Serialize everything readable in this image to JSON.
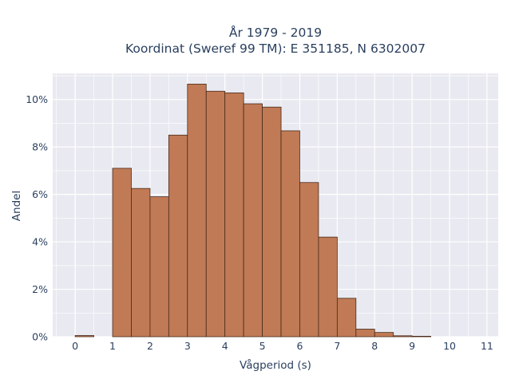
{
  "chart_data": {
    "type": "bar",
    "title_line1": "År 1979 - 2019",
    "title_line2": "Koordinat (Sweref 99 TM): E 351185, N 6302007",
    "xlabel": "Vågperiod (s)",
    "ylabel": "Andel",
    "xlim": [
      -0.6,
      11.3
    ],
    "ylim": [
      0,
      11.1
    ],
    "x_ticks": [
      0,
      1,
      2,
      3,
      4,
      5,
      6,
      7,
      8,
      9,
      10,
      11
    ],
    "x_tick_labels": [
      "0",
      "1",
      "2",
      "3",
      "4",
      "5",
      "6",
      "7",
      "8",
      "9",
      "10",
      "11"
    ],
    "y_ticks": [
      0,
      2,
      4,
      6,
      8,
      10
    ],
    "y_tick_labels": [
      "0%",
      "2%",
      "4%",
      "6%",
      "8%",
      "10%"
    ],
    "bin_width": 0.5,
    "bin_starts": [
      0,
      1,
      1.5,
      2,
      2.5,
      3,
      3.5,
      4,
      4.5,
      5,
      5.5,
      6,
      6.5,
      7,
      7.5,
      8,
      8.5,
      9
    ],
    "values": [
      0.05,
      7.1,
      6.25,
      5.9,
      8.5,
      10.65,
      10.35,
      10.28,
      9.82,
      9.68,
      8.68,
      6.5,
      4.2,
      1.62,
      0.32,
      0.18,
      0.04,
      0.02
    ],
    "bar_color": "#c07a55",
    "bar_edge_color": "#4a2a1a",
    "plot_bg": "#e9eaf1",
    "grid": true,
    "grid_color": "#ffffff"
  }
}
